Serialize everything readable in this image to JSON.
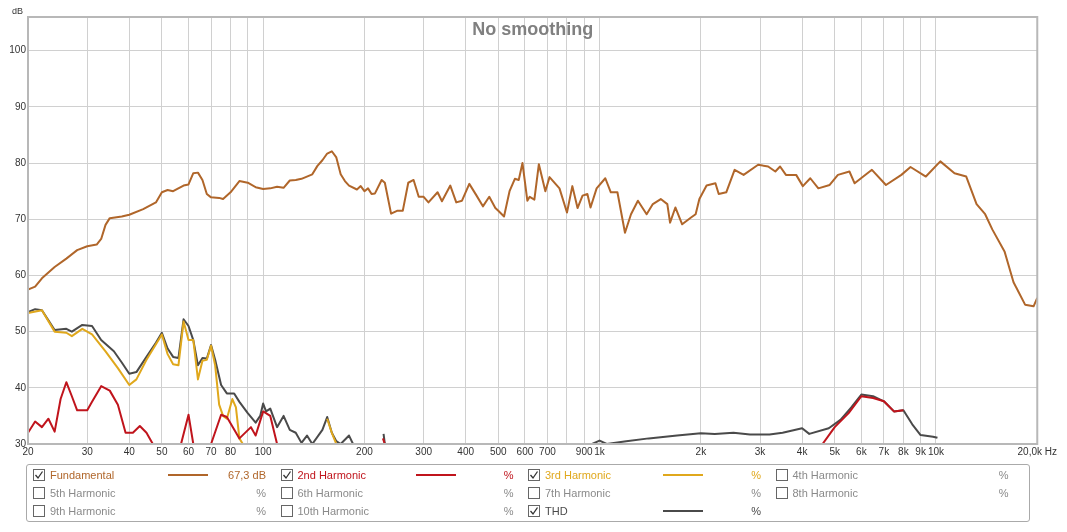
{
  "chart_data": {
    "type": "line",
    "title": "No smoothing",
    "ylabel": "dB",
    "xlim": [
      20,
      20000
    ],
    "ylim": [
      30,
      106
    ],
    "log": "x",
    "grid": true,
    "legend": "bottom",
    "marker": "none",
    "line_style": "solid",
    "xticks": [
      20,
      30,
      40,
      50,
      60,
      70,
      80,
      {
        "value": 90,
        "label": null
      },
      100,
      200,
      300,
      400,
      500,
      600,
      700,
      {
        "value": 800,
        "label": null
      },
      900,
      {
        "value": 1000,
        "label": "1k"
      },
      {
        "value": 2000,
        "label": "2k"
      },
      {
        "value": 3000,
        "label": "3k"
      },
      {
        "value": 4000,
        "label": "4k"
      },
      {
        "value": 5000,
        "label": "5k"
      },
      {
        "value": 6000,
        "label": "6k"
      },
      {
        "value": 7000,
        "label": "7k"
      },
      {
        "value": 8000,
        "label": "8k"
      },
      {
        "value": 9000,
        "label": "9k"
      },
      {
        "value": 10000,
        "label": "10k"
      },
      {
        "value": 20000,
        "label": "20,0k Hz"
      }
    ],
    "yticks": [
      30,
      40,
      50,
      60,
      70,
      80,
      90,
      100
    ],
    "annotations": [
      "67,3 dB",
      "%",
      "%",
      "%",
      "%",
      "%",
      "%",
      "%",
      "%",
      "%",
      "%"
    ],
    "series": [
      {
        "name": "Fundamental",
        "color": "#b0662a",
        "x": [
          20,
          21,
          22,
          24,
          26,
          28,
          30,
          32,
          33,
          34,
          35,
          38,
          40,
          44,
          48,
          50,
          52,
          54,
          58,
          60,
          62,
          64,
          66,
          68,
          70,
          74,
          76,
          80,
          85,
          90,
          95,
          100,
          105,
          110,
          115,
          120,
          125,
          130,
          140,
          145,
          150,
          155,
          160,
          165,
          170,
          175,
          180,
          190,
          195,
          200,
          205,
          210,
          215,
          225,
          230,
          240,
          250,
          260,
          270,
          280,
          290,
          300,
          310,
          330,
          340,
          360,
          375,
          390,
          410,
          430,
          450,
          470,
          490,
          500,
          520,
          540,
          560,
          575,
          590,
          610,
          620,
          640,
          660,
          690,
          710,
          760,
          800,
          830,
          860,
          890,
          920,
          940,
          980,
          1040,
          1080,
          1130,
          1190,
          1240,
          1300,
          1380,
          1440,
          1520,
          1590,
          1620,
          1680,
          1760,
          1870,
          1930,
          1980,
          2080,
          2210,
          2260,
          2380,
          2520,
          2680,
          2960,
          3170,
          3330,
          3440,
          3580,
          3840,
          4020,
          4230,
          4470,
          4830,
          5110,
          5530,
          5730,
          6450,
          7100,
          7890,
          8400,
          9330,
          10300,
          11350,
          12300,
          13200,
          14000,
          14700,
          16000,
          17000,
          18400,
          19500,
          20000
        ],
        "values": [
          57.5,
          58,
          59.5,
          61.5,
          63,
          64.5,
          65.2,
          65.5,
          66.5,
          69,
          70.2,
          70.5,
          70.8,
          71.8,
          73,
          74.8,
          75.2,
          75,
          76,
          76.2,
          78.2,
          78.3,
          77,
          74.5,
          73.9,
          73.8,
          73.6,
          74.8,
          76.8,
          76.5,
          75.7,
          75.4,
          75.5,
          75.8,
          75.6,
          76.9,
          77,
          77.2,
          78,
          79.5,
          80.5,
          81.7,
          82.1,
          81,
          78,
          76.8,
          76,
          75.3,
          75.9,
          75,
          75.5,
          74.5,
          74.6,
          77,
          76.5,
          71,
          71.5,
          71.5,
          76.5,
          77,
          74,
          74,
          73,
          74.8,
          73.2,
          76,
          73,
          73.3,
          76.3,
          74.3,
          72.3,
          74,
          72,
          71.5,
          70.5,
          75,
          77.2,
          77,
          80,
          73.3,
          74,
          73.5,
          79.8,
          75,
          77.5,
          75.5,
          71.2,
          75.9,
          72,
          74.2,
          74.5,
          72.1,
          75.5,
          77.3,
          74.8,
          74.8,
          67.6,
          70.9,
          73.3,
          70.9,
          72.7,
          73.6,
          72.7,
          69.4,
          72.1,
          69.1,
          70.3,
          70.9,
          73.6,
          76,
          76.4,
          74.5,
          74.8,
          78.8,
          77.9,
          79.7,
          79.4,
          78.5,
          79.4,
          77.9,
          77.9,
          75.9,
          77.3,
          75.5,
          76.1,
          77.9,
          78.5,
          76.4,
          78.8,
          76.1,
          77.9,
          79.3,
          77.6,
          80.3,
          78.2,
          77.6,
          72.7,
          70.9,
          68.2,
          64.2,
          58.8,
          54.8,
          54.5,
          56
        ]
      },
      {
        "name": "2nd Harmonic",
        "color": "#c0141c",
        "x": [
          20,
          21,
          22,
          23,
          24,
          25,
          26,
          27,
          28,
          30,
          31,
          33,
          35,
          37,
          39,
          41,
          43,
          45,
          47,
          50,
          57,
          60,
          62,
          65,
          70,
          75,
          78,
          85,
          92,
          95,
          100,
          105,
          110,
          150,
          227,
          230,
          4000,
          4600,
          5000,
          5500,
          6000,
          6500,
          7000,
          7500,
          8000
        ],
        "values": [
          32,
          34,
          33,
          34.5,
          32.2,
          38,
          41,
          38.5,
          36,
          36,
          37.5,
          40.3,
          39.5,
          37,
          32,
          32,
          33.2,
          32,
          30,
          null,
          30,
          35.2,
          30,
          null,
          30,
          35.2,
          34.8,
          31,
          33,
          31.5,
          35.8,
          35,
          30,
          null,
          31,
          30,
          null,
          30,
          33,
          35.5,
          38.5,
          38.2,
          37.6,
          35.8,
          36
        ]
      },
      {
        "name": "3rd Harmonic",
        "color": "#e0a81c",
        "x": [
          20,
          22,
          24,
          26,
          27,
          29,
          31,
          34,
          37,
          40,
          42,
          45,
          50,
          52,
          54,
          56,
          58,
          60,
          62,
          64,
          66,
          68,
          70,
          72,
          74,
          76,
          78,
          81,
          83,
          85,
          87,
          100,
          155,
          160,
          165
        ],
        "values": [
          53.3,
          53.8,
          50,
          49.8,
          49.2,
          50.5,
          49.5,
          46.5,
          43.5,
          40.5,
          41.5,
          45,
          49.5,
          46,
          44.2,
          44,
          51.8,
          48.5,
          48.5,
          41.5,
          44.8,
          45,
          47.5,
          44,
          37,
          35,
          34.5,
          38,
          36.5,
          31,
          30,
          null,
          34.5,
          32,
          30
        ]
      },
      {
        "name": "4th Harmonic"
      },
      {
        "name": "5th Harmonic"
      },
      {
        "name": "6th Harmonic"
      },
      {
        "name": "7th Harmonic"
      },
      {
        "name": "8th Harmonic"
      },
      {
        "name": "9th Harmonic"
      },
      {
        "name": "10th Harmonic"
      },
      {
        "name": "THD",
        "color": "#4a4a4a",
        "x": [
          20,
          21,
          22,
          23,
          24,
          26,
          27,
          29,
          31,
          33,
          36,
          38,
          40,
          42,
          45,
          48,
          50,
          52,
          54,
          56,
          58,
          60,
          62,
          64,
          66,
          68,
          70,
          72,
          75,
          78,
          82,
          85,
          90,
          95,
          98,
          100,
          102,
          105,
          110,
          115,
          120,
          125,
          130,
          135,
          140,
          150,
          155,
          160,
          165,
          170,
          180,
          185,
          200,
          228,
          230,
          500,
          950,
          1000,
          1050,
          1200,
          1400,
          1700,
          2000,
          2200,
          2500,
          2800,
          3200,
          3500,
          4000,
          4200,
          4800,
          5200,
          5600,
          6000,
          6500,
          7000,
          7500,
          8000,
          8500,
          9000,
          9800,
          10100
        ],
        "values": [
          53.5,
          54,
          53.8,
          52,
          50.3,
          50.5,
          50,
          51.2,
          51,
          48.5,
          46.5,
          44.5,
          42.5,
          42.8,
          45.5,
          48,
          49.8,
          47,
          45.5,
          45.3,
          52.2,
          51,
          48.5,
          44,
          45.3,
          45.2,
          47.6,
          45,
          40.5,
          39,
          39,
          37.5,
          35.5,
          33.8,
          35,
          37.2,
          35.8,
          36.3,
          33,
          35,
          32.5,
          32,
          30.2,
          31.5,
          30,
          32.5,
          34.8,
          32,
          30.5,
          30,
          31.5,
          30,
          null,
          31.8,
          30,
          null,
          30,
          30.6,
          30,
          30.5,
          31,
          31.5,
          31.9,
          31.8,
          32,
          31.7,
          31.7,
          32,
          32.8,
          31.8,
          32.8,
          34.3,
          36.5,
          38.8,
          38.5,
          37.6,
          35.8,
          36,
          33.5,
          31.6,
          31.3,
          31.1
        ]
      }
    ]
  }
}
